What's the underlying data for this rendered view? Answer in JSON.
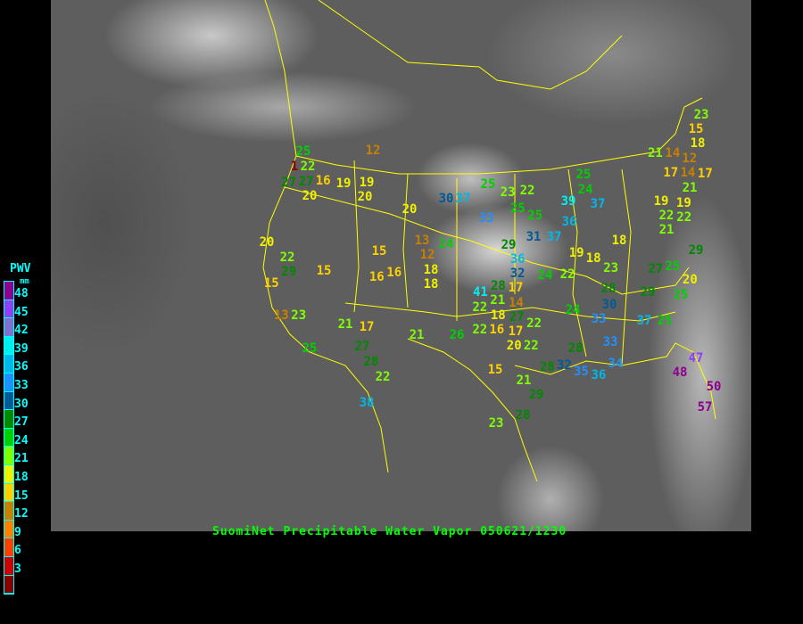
{
  "title": "SuomiNet Precipitable Water Vapor 050621/1230",
  "legend": {
    "title": "PWV",
    "unit": "mm",
    "ticks": [
      "48",
      "45",
      "42",
      "39",
      "36",
      "33",
      "30",
      "27",
      "24",
      "21",
      "18",
      "15",
      "12",
      "9",
      "6",
      "3"
    ],
    "colors": [
      "#900090",
      "#9040f0",
      "#8070d0",
      "#00f0f0",
      "#00b8e8",
      "#2090ff",
      "#005a96",
      "#008800",
      "#00d000",
      "#80ff00",
      "#f0f000",
      "#ffd000",
      "#c88000",
      "#ff8000",
      "#ff4000",
      "#d00000",
      "#8b0000"
    ]
  },
  "stations": [
    "12",
    "25",
    "22",
    "1",
    "27",
    "27",
    "16",
    "19",
    "19",
    "20",
    "20",
    "20",
    "30",
    "37",
    "25",
    "23",
    "22",
    "25",
    "25",
    "33",
    "29",
    "31",
    "37",
    "24",
    "13",
    "12",
    "15",
    "18",
    "18",
    "16",
    "16",
    "15",
    "20",
    "22",
    "29",
    "15",
    "13",
    "23",
    "21",
    "17",
    "21",
    "26",
    "25",
    "27",
    "28",
    "22",
    "38",
    "36",
    "32",
    "41",
    "28",
    "27",
    "17",
    "14",
    "22",
    "21",
    "18",
    "22",
    "16",
    "17",
    "20",
    "22",
    "22",
    "24",
    "22",
    "19",
    "18",
    "23",
    "28",
    "24",
    "30",
    "33",
    "33",
    "37",
    "25",
    "29",
    "27",
    "25",
    "25",
    "20",
    "18",
    "19",
    "22",
    "22",
    "21",
    "21",
    "19",
    "23",
    "15",
    "18",
    "21",
    "14",
    "12",
    "17",
    "14",
    "17",
    "29",
    "25",
    "24",
    "39",
    "37",
    "36",
    "15",
    "21",
    "29",
    "28",
    "23",
    "28",
    "28",
    "32",
    "35",
    "36",
    "34",
    "47",
    "48",
    "50",
    "57"
  ]
}
